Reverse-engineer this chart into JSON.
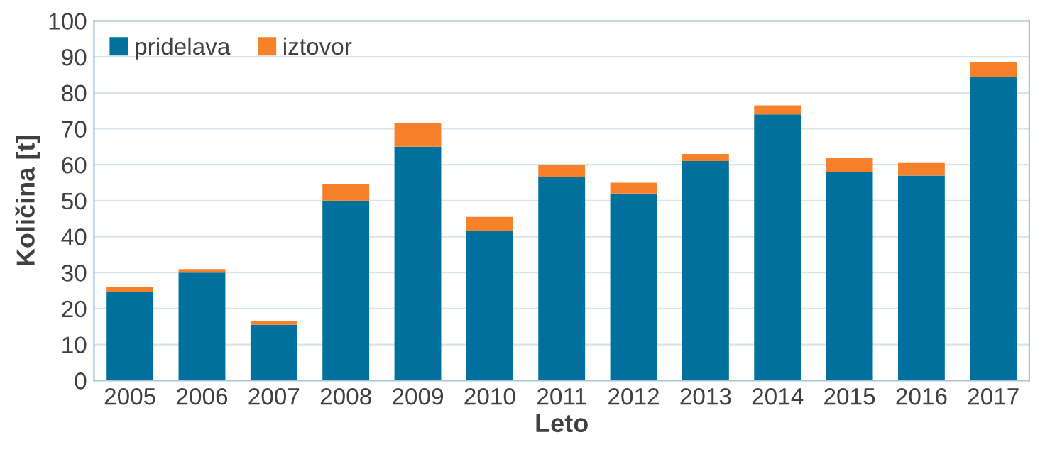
{
  "chart_data": {
    "type": "bar",
    "stacked": true,
    "xlabel": "Leto",
    "ylabel": "Količina [t]",
    "categories": [
      "2005",
      "2006",
      "2007",
      "2008",
      "2009",
      "2010",
      "2011",
      "2012",
      "2013",
      "2014",
      "2015",
      "2016",
      "2017"
    ],
    "series": [
      {
        "name": "pridelava",
        "color": "#00709c",
        "values": [
          24.5,
          30,
          15.5,
          50,
          65,
          41.5,
          56.5,
          52,
          61,
          74,
          58,
          57,
          84.5
        ]
      },
      {
        "name": "iztovor",
        "color": "#f7812a",
        "values": [
          1.5,
          1,
          1,
          4.5,
          6.5,
          4,
          3.5,
          3,
          2,
          2.5,
          4,
          3.5,
          4
        ]
      }
    ],
    "ylim": [
      0,
      100
    ],
    "yticks": [
      0,
      10,
      20,
      30,
      40,
      50,
      60,
      70,
      80,
      90,
      100
    ],
    "grid": "y",
    "legend": "top left"
  }
}
